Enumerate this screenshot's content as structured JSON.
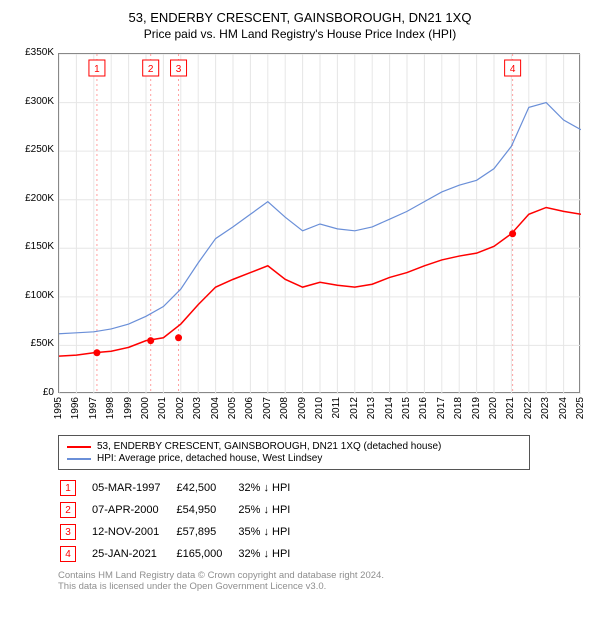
{
  "title": "53, ENDERBY CRESCENT, GAINSBOROUGH, DN21 1XQ",
  "subtitle": "Price paid vs. HM Land Registry's House Price Index (HPI)",
  "chart": {
    "type": "line",
    "background_color": "#ffffff",
    "plot_border_color": "#888888",
    "grid_color": "#e6e6e6",
    "marker_line_color": "#ff9f9f",
    "x_axis": {
      "min": 1995,
      "max": 2025,
      "ticks": [
        1995,
        1996,
        1997,
        1998,
        1999,
        2000,
        2001,
        2002,
        2003,
        2004,
        2005,
        2006,
        2007,
        2008,
        2009,
        2010,
        2011,
        2012,
        2013,
        2014,
        2015,
        2016,
        2017,
        2018,
        2019,
        2020,
        2021,
        2022,
        2023,
        2024,
        2025
      ]
    },
    "y_axis": {
      "min": 0,
      "max": 350000,
      "tick_step": 50000,
      "tick_labels": [
        "£0",
        "£50K",
        "£100K",
        "£150K",
        "£200K",
        "£250K",
        "£300K",
        "£350K"
      ]
    },
    "series": [
      {
        "name": "property",
        "label": "53, ENDERBY CRESCENT, GAINSBOROUGH, DN21 1XQ (detached house)",
        "color": "#ff0000",
        "line_width": 1.5,
        "points": [
          [
            1995,
            39000
          ],
          [
            1996,
            40000
          ],
          [
            1997,
            42500
          ],
          [
            1998,
            44000
          ],
          [
            1999,
            48000
          ],
          [
            2000,
            54950
          ],
          [
            2001,
            57895
          ],
          [
            2002,
            72000
          ],
          [
            2003,
            92000
          ],
          [
            2004,
            110000
          ],
          [
            2005,
            118000
          ],
          [
            2006,
            125000
          ],
          [
            2007,
            132000
          ],
          [
            2008,
            118000
          ],
          [
            2009,
            110000
          ],
          [
            2010,
            115000
          ],
          [
            2011,
            112000
          ],
          [
            2012,
            110000
          ],
          [
            2013,
            113000
          ],
          [
            2014,
            120000
          ],
          [
            2015,
            125000
          ],
          [
            2016,
            132000
          ],
          [
            2017,
            138000
          ],
          [
            2018,
            142000
          ],
          [
            2019,
            145000
          ],
          [
            2020,
            152000
          ],
          [
            2021,
            165000
          ],
          [
            2022,
            185000
          ],
          [
            2023,
            192000
          ],
          [
            2024,
            188000
          ],
          [
            2025,
            185000
          ]
        ]
      },
      {
        "name": "hpi",
        "label": "HPI: Average price, detached house, West Lindsey",
        "color": "#6a8fd8",
        "line_width": 1.2,
        "points": [
          [
            1995,
            62000
          ],
          [
            1996,
            63000
          ],
          [
            1997,
            64000
          ],
          [
            1998,
            67000
          ],
          [
            1999,
            72000
          ],
          [
            2000,
            80000
          ],
          [
            2001,
            90000
          ],
          [
            2002,
            108000
          ],
          [
            2003,
            135000
          ],
          [
            2004,
            160000
          ],
          [
            2005,
            172000
          ],
          [
            2006,
            185000
          ],
          [
            2007,
            198000
          ],
          [
            2008,
            182000
          ],
          [
            2009,
            168000
          ],
          [
            2010,
            175000
          ],
          [
            2011,
            170000
          ],
          [
            2012,
            168000
          ],
          [
            2013,
            172000
          ],
          [
            2014,
            180000
          ],
          [
            2015,
            188000
          ],
          [
            2016,
            198000
          ],
          [
            2017,
            208000
          ],
          [
            2018,
            215000
          ],
          [
            2019,
            220000
          ],
          [
            2020,
            232000
          ],
          [
            2021,
            255000
          ],
          [
            2022,
            295000
          ],
          [
            2023,
            300000
          ],
          [
            2024,
            282000
          ],
          [
            2025,
            272000
          ]
        ]
      }
    ],
    "sale_markers": [
      {
        "n": "1",
        "year": 1997.18,
        "price": 42500
      },
      {
        "n": "2",
        "year": 2000.27,
        "price": 54950
      },
      {
        "n": "3",
        "year": 2001.87,
        "price": 57895
      },
      {
        "n": "4",
        "year": 2021.07,
        "price": 165000
      }
    ],
    "marker_box": {
      "border_color": "#ff0000",
      "text_color": "#ff0000",
      "bg": "#ffffff"
    }
  },
  "legend": {
    "item1_label": "53, ENDERBY CRESCENT, GAINSBOROUGH, DN21 1XQ (detached house)",
    "item1_color": "#ff0000",
    "item2_label": "HPI: Average price, detached house, West Lindsey",
    "item2_color": "#6a8fd8"
  },
  "sales_table": {
    "rows": [
      {
        "n": "1",
        "date": "05-MAR-1997",
        "price": "£42,500",
        "delta": "32% ↓ HPI"
      },
      {
        "n": "2",
        "date": "07-APR-2000",
        "price": "£54,950",
        "delta": "25% ↓ HPI"
      },
      {
        "n": "3",
        "date": "12-NOV-2001",
        "price": "£57,895",
        "delta": "35% ↓ HPI"
      },
      {
        "n": "4",
        "date": "25-JAN-2021",
        "price": "£165,000",
        "delta": "32% ↓ HPI"
      }
    ]
  },
  "footer": {
    "line1": "Contains HM Land Registry data © Crown copyright and database right 2024.",
    "line2": "This data is licensed under the Open Government Licence v3.0."
  }
}
